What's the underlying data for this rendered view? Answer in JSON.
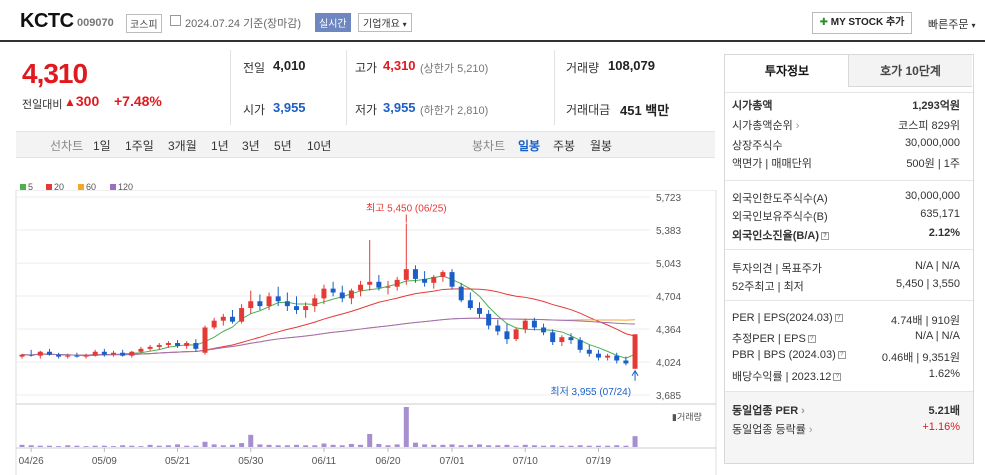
{
  "header": {
    "name": "KCTC",
    "code": "009070",
    "market": "코스피",
    "base_date": "2024.07.24 기준(장마감)",
    "realtime": "실시간",
    "corp_info": "기업개요",
    "mystock": "MY STOCK 추가",
    "quick_order": "빠른주문"
  },
  "price": {
    "current": "4,310",
    "change_label": "전일대비",
    "change": "300",
    "rate": "+7.48%"
  },
  "quote": {
    "prev_label": "전일",
    "prev": "4,010",
    "open_label": "시가",
    "open": "3,955",
    "high_label": "고가",
    "high": "4,310",
    "upper_limit": "(상한가 5,210)",
    "low_label": "저가",
    "low": "3,955",
    "lower_limit": "(하한가 2,810)",
    "volume_label": "거래량",
    "volume": "108,079",
    "amount_label": "거래대금",
    "amount": "451 백만"
  },
  "periods": {
    "line_label": "선차트",
    "items": [
      "1일",
      "1주일",
      "3개월",
      "1년",
      "3년",
      "5년",
      "10년"
    ],
    "candle_label": "봉차트",
    "candles": [
      "일봉",
      "주봉",
      "월봉"
    ]
  },
  "chart_data": {
    "type": "candlestick",
    "legend": [
      "5",
      "20",
      "60",
      "120"
    ],
    "legend_colors": [
      "#4caf50",
      "#e53935",
      "#f5a623",
      "#9c6fc0"
    ],
    "y_ticks": [
      "5,723",
      "5,383",
      "5,043",
      "4,704",
      "4,364",
      "4,024",
      "3,685"
    ],
    "y_tick_values": [
      5723,
      5383,
      5043,
      4704,
      4364,
      4024,
      3685
    ],
    "ylim": [
      3685,
      5723
    ],
    "x_labels": [
      "04/26",
      "05/09",
      "05/21",
      "05/30",
      "06/11",
      "06/20",
      "07/01",
      "07/10",
      "07/19"
    ],
    "x_label_index": [
      1,
      9,
      17,
      25,
      33,
      40,
      47,
      55,
      63
    ],
    "high_annotation": "최고 5,450 (06/25)",
    "low_annotation": "최저 3,955 (07/24)",
    "volume_label": "거래량",
    "candles": [
      [
        4080,
        4110,
        4060,
        4100
      ],
      [
        4100,
        4150,
        4080,
        4090
      ],
      [
        4090,
        4140,
        4060,
        4130
      ],
      [
        4130,
        4160,
        4090,
        4100
      ],
      [
        4100,
        4120,
        4060,
        4080
      ],
      [
        4080,
        4110,
        4060,
        4090
      ],
      [
        4090,
        4120,
        4070,
        4080
      ],
      [
        4080,
        4110,
        4060,
        4090
      ],
      [
        4090,
        4150,
        4080,
        4130
      ],
      [
        4130,
        4160,
        4080,
        4100
      ],
      [
        4100,
        4140,
        4080,
        4120
      ],
      [
        4120,
        4150,
        4080,
        4090
      ],
      [
        4090,
        4140,
        4070,
        4130
      ],
      [
        4130,
        4180,
        4110,
        4160
      ],
      [
        4160,
        4200,
        4140,
        4180
      ],
      [
        4180,
        4220,
        4150,
        4200
      ],
      [
        4200,
        4240,
        4170,
        4220
      ],
      [
        4220,
        4250,
        4170,
        4190
      ],
      [
        4190,
        4240,
        4160,
        4220
      ],
      [
        4220,
        4260,
        4130,
        4160
      ],
      [
        4120,
        4400,
        4100,
        4380
      ],
      [
        4380,
        4480,
        4360,
        4450
      ],
      [
        4450,
        4520,
        4400,
        4490
      ],
      [
        4490,
        4560,
        4420,
        4440
      ],
      [
        4440,
        4620,
        4420,
        4580
      ],
      [
        4580,
        4760,
        4520,
        4650
      ],
      [
        4650,
        4720,
        4560,
        4600
      ],
      [
        4600,
        4740,
        4560,
        4700
      ],
      [
        4700,
        4800,
        4600,
        4650
      ],
      [
        4650,
        4740,
        4550,
        4600
      ],
      [
        4600,
        4700,
        4520,
        4560
      ],
      [
        4560,
        4640,
        4480,
        4600
      ],
      [
        4600,
        4720,
        4540,
        4680
      ],
      [
        4680,
        4820,
        4620,
        4780
      ],
      [
        4780,
        4850,
        4700,
        4740
      ],
      [
        4740,
        4810,
        4640,
        4680
      ],
      [
        4680,
        4780,
        4620,
        4760
      ],
      [
        4760,
        4860,
        4700,
        4820
      ],
      [
        4820,
        5280,
        4760,
        4850
      ],
      [
        4850,
        4920,
        4760,
        4790
      ],
      [
        4790,
        4860,
        4720,
        4800
      ],
      [
        4800,
        4900,
        4760,
        4870
      ],
      [
        4870,
        5450,
        4820,
        4980
      ],
      [
        4980,
        5020,
        4840,
        4880
      ],
      [
        4880,
        4960,
        4800,
        4840
      ],
      [
        4840,
        4920,
        4780,
        4900
      ],
      [
        4900,
        4970,
        4850,
        4950
      ],
      [
        4950,
        4980,
        4770,
        4800
      ],
      [
        4800,
        4840,
        4640,
        4660
      ],
      [
        4660,
        4740,
        4560,
        4580
      ],
      [
        4580,
        4640,
        4480,
        4520
      ],
      [
        4520,
        4560,
        4360,
        4400
      ],
      [
        4400,
        4460,
        4300,
        4340
      ],
      [
        4340,
        4420,
        4210,
        4260
      ],
      [
        4260,
        4380,
        4240,
        4360
      ],
      [
        4360,
        4470,
        4320,
        4450
      ],
      [
        4450,
        4480,
        4350,
        4380
      ],
      [
        4380,
        4420,
        4300,
        4330
      ],
      [
        4330,
        4360,
        4200,
        4230
      ],
      [
        4230,
        4300,
        4190,
        4280
      ],
      [
        4280,
        4320,
        4210,
        4250
      ],
      [
        4250,
        4280,
        4120,
        4150
      ],
      [
        4150,
        4200,
        4080,
        4110
      ],
      [
        4110,
        4150,
        4040,
        4070
      ],
      [
        4070,
        4110,
        4040,
        4090
      ],
      [
        4090,
        4120,
        4010,
        4040
      ],
      [
        4040,
        4080,
        3990,
        4010
      ],
      [
        3955,
        4310,
        3955,
        4310
      ]
    ],
    "volumes": [
      5,
      4,
      3,
      3,
      2,
      4,
      3,
      2,
      3,
      3,
      2,
      4,
      3,
      2,
      5,
      3,
      4,
      6,
      3,
      3,
      12,
      6,
      4,
      5,
      9,
      28,
      6,
      5,
      4,
      4,
      5,
      4,
      4,
      8,
      5,
      4,
      7,
      5,
      30,
      7,
      4,
      6,
      92,
      10,
      6,
      5,
      5,
      6,
      4,
      5,
      6,
      4,
      4,
      5,
      3,
      5,
      4,
      3,
      4,
      3,
      3,
      4,
      3,
      3,
      3,
      4,
      3,
      25
    ]
  },
  "invest": {
    "tab_on": "투자정보",
    "tab_off": "호가 10단계",
    "rows": [
      {
        "label": "시가총액",
        "value": "1,293억원"
      },
      {
        "label": "시가총액순위",
        "value": "코스피 829위"
      },
      {
        "label": "상장주식수",
        "value": "30,000,000"
      },
      {
        "label": "액면가 | 매매단위",
        "value": "500원 | 1주"
      },
      {
        "label": "외국인한도주식수(A)",
        "value": "30,000,000"
      },
      {
        "label": "외국인보유주식수(B)",
        "value": "635,171"
      },
      {
        "label": "외국인소진율(B/A)",
        "value": "2.12%"
      },
      {
        "label": "투자의견 | 목표주가",
        "value": "N/A | N/A"
      },
      {
        "label": "52주최고 | 최저",
        "value": "5,450 | 3,550"
      },
      {
        "label": "PER | EPS(2024.03)",
        "value": "4.74배 | 910원"
      },
      {
        "label": "추정PER | EPS",
        "value": "N/A | N/A"
      },
      {
        "label": "PBR | BPS (2024.03)",
        "value": "0.46배 | 9,351원"
      },
      {
        "label": "배당수익률 | 2023.12",
        "value": "1.62%"
      },
      {
        "label": "동일업종 PER",
        "value": "5.21배"
      },
      {
        "label": "동일업종 등락률",
        "value": "+1.16%"
      }
    ]
  }
}
